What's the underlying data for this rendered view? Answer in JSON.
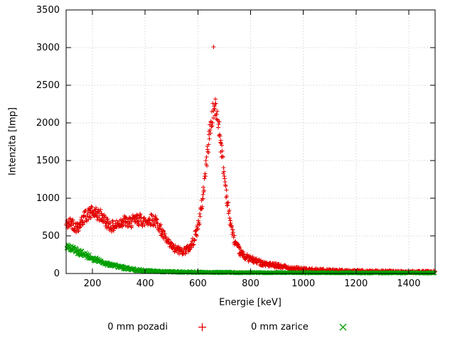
{
  "chart_data": {
    "type": "scatter",
    "title": "",
    "xlabel": "Energie [keV]",
    "ylabel": "Intenzita [Imp]",
    "xlim": [
      100,
      1500
    ],
    "ylim": [
      0,
      3500
    ],
    "xticks": [
      200,
      400,
      600,
      800,
      1000,
      1200,
      1400
    ],
    "yticks": [
      0,
      500,
      1000,
      1500,
      2000,
      2500,
      3000,
      3500
    ],
    "grid": true,
    "legend_position": "bottom-center",
    "series": [
      {
        "name": "0 mm pozadi",
        "marker": "plus",
        "color": "#e40000",
        "point_count": 1100,
        "noise": 3.0,
        "outliers": [
          [
            660,
            3010
          ]
        ],
        "anchor_points": [
          [
            100,
            640
          ],
          [
            110,
            660
          ],
          [
            120,
            690
          ],
          [
            130,
            640
          ],
          [
            140,
            610
          ],
          [
            150,
            640
          ],
          [
            160,
            700
          ],
          [
            170,
            750
          ],
          [
            180,
            780
          ],
          [
            190,
            800
          ],
          [
            200,
            810
          ],
          [
            210,
            790
          ],
          [
            220,
            780
          ],
          [
            230,
            770
          ],
          [
            240,
            740
          ],
          [
            250,
            690
          ],
          [
            260,
            660
          ],
          [
            270,
            630
          ],
          [
            280,
            620
          ],
          [
            290,
            640
          ],
          [
            300,
            660
          ],
          [
            310,
            690
          ],
          [
            320,
            700
          ],
          [
            330,
            680
          ],
          [
            340,
            670
          ],
          [
            350,
            690
          ],
          [
            360,
            700
          ],
          [
            370,
            710
          ],
          [
            380,
            720
          ],
          [
            390,
            700
          ],
          [
            400,
            690
          ],
          [
            410,
            700
          ],
          [
            420,
            720
          ],
          [
            430,
            710
          ],
          [
            440,
            690
          ],
          [
            450,
            650
          ],
          [
            460,
            570
          ],
          [
            470,
            500
          ],
          [
            480,
            440
          ],
          [
            490,
            390
          ],
          [
            500,
            360
          ],
          [
            510,
            330
          ],
          [
            520,
            315
          ],
          [
            530,
            305
          ],
          [
            540,
            300
          ],
          [
            550,
            305
          ],
          [
            560,
            320
          ],
          [
            570,
            350
          ],
          [
            580,
            410
          ],
          [
            590,
            500
          ],
          [
            600,
            620
          ],
          [
            610,
            800
          ],
          [
            620,
            1050
          ],
          [
            630,
            1400
          ],
          [
            640,
            1750
          ],
          [
            650,
            2000
          ],
          [
            660,
            2180
          ],
          [
            665,
            2200
          ],
          [
            670,
            2150
          ],
          [
            680,
            1950
          ],
          [
            690,
            1650
          ],
          [
            700,
            1300
          ],
          [
            710,
            1000
          ],
          [
            720,
            750
          ],
          [
            730,
            560
          ],
          [
            740,
            430
          ],
          [
            750,
            340
          ],
          [
            760,
            290
          ],
          [
            770,
            250
          ],
          [
            780,
            225
          ],
          [
            790,
            205
          ],
          [
            800,
            190
          ],
          [
            820,
            165
          ],
          [
            840,
            145
          ],
          [
            860,
            125
          ],
          [
            880,
            110
          ],
          [
            900,
            100
          ],
          [
            930,
            85
          ],
          [
            960,
            70
          ],
          [
            1000,
            55
          ],
          [
            1050,
            45
          ],
          [
            1100,
            38
          ],
          [
            1150,
            33
          ],
          [
            1200,
            30
          ],
          [
            1250,
            27
          ],
          [
            1300,
            25
          ],
          [
            1350,
            22
          ],
          [
            1400,
            20
          ],
          [
            1450,
            20
          ],
          [
            1500,
            20
          ]
        ]
      },
      {
        "name": "0 mm zarice",
        "marker": "cross",
        "color": "#009e00",
        "point_count": 950,
        "noise": 2.5,
        "outliers": [],
        "anchor_points": [
          [
            100,
            360
          ],
          [
            110,
            345
          ],
          [
            120,
            330
          ],
          [
            130,
            315
          ],
          [
            140,
            300
          ],
          [
            150,
            285
          ],
          [
            160,
            268
          ],
          [
            170,
            250
          ],
          [
            180,
            235
          ],
          [
            190,
            220
          ],
          [
            200,
            205
          ],
          [
            210,
            190
          ],
          [
            220,
            175
          ],
          [
            230,
            162
          ],
          [
            240,
            150
          ],
          [
            250,
            138
          ],
          [
            260,
            127
          ],
          [
            270,
            116
          ],
          [
            280,
            106
          ],
          [
            290,
            97
          ],
          [
            300,
            89
          ],
          [
            320,
            75
          ],
          [
            340,
            62
          ],
          [
            360,
            52
          ],
          [
            380,
            44
          ],
          [
            400,
            38
          ],
          [
            420,
            33
          ],
          [
            440,
            29
          ],
          [
            460,
            26
          ],
          [
            480,
            24
          ],
          [
            500,
            22
          ],
          [
            550,
            19
          ],
          [
            600,
            17
          ],
          [
            650,
            15
          ],
          [
            700,
            14
          ],
          [
            750,
            13
          ],
          [
            800,
            12
          ],
          [
            900,
            11
          ],
          [
            1000,
            10
          ],
          [
            1100,
            10
          ],
          [
            1200,
            9
          ],
          [
            1300,
            9
          ],
          [
            1400,
            9
          ],
          [
            1500,
            9
          ]
        ]
      }
    ]
  }
}
